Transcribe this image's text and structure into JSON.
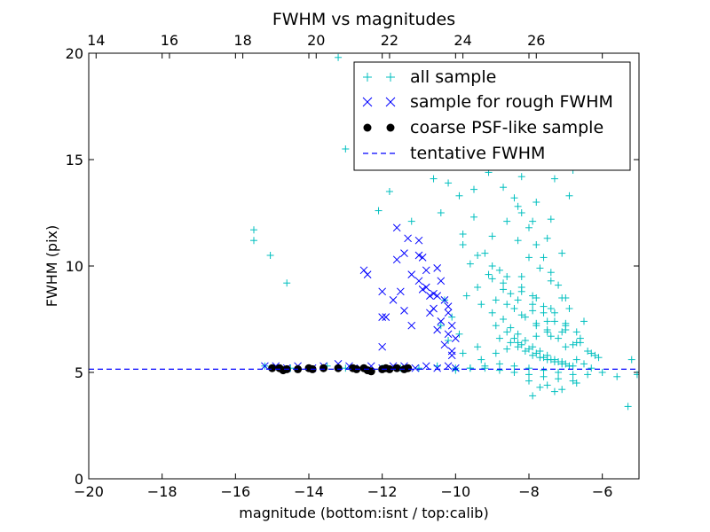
{
  "chart_data": {
    "type": "scatter",
    "title": "FWHM vs magnitudes",
    "xlabel": "magnitude (bottom:isnt / top:calib)",
    "ylabel": "FWHM (pix)",
    "xlim": [
      -20,
      -5
    ],
    "ylim": [
      0,
      20
    ],
    "x_ticks": [
      -20,
      -18,
      -16,
      -14,
      -12,
      -10,
      -8,
      -6
    ],
    "x_tick_labels": [
      "−20",
      "−18",
      "−16",
      "−14",
      "−12",
      "−10",
      "−8",
      "−6"
    ],
    "y_ticks": [
      0,
      5,
      10,
      15,
      20
    ],
    "y_tick_labels": [
      "0",
      "5",
      "10",
      "15",
      "20"
    ],
    "top_axis": {
      "ticks": [
        14,
        16,
        18,
        20,
        22,
        24,
        26
      ],
      "tick_labels": [
        "14",
        "16",
        "18",
        "20",
        "22",
        "24",
        "26"
      ],
      "offset": 33.8
    },
    "grid": false,
    "legend_position": "top-right",
    "series": [
      {
        "name": "all sample",
        "marker": "+",
        "color": "#00bfbf",
        "x": [
          -15.5,
          -15.5,
          -15.05,
          -14.6,
          -15.2,
          -14.8,
          -14.5,
          -14.0,
          -13.5,
          -13.0,
          -12.5,
          -12.0,
          -11.5,
          -11.0,
          -10.5,
          -10.0,
          -9.6,
          -9.2,
          -12.1,
          -11.8,
          -11.2,
          -10.6,
          -10.2,
          -13.2,
          -13.0,
          -10.9,
          -10.4,
          -9.9,
          -9.7,
          -9.3,
          -10.0,
          -9.6,
          -9.2,
          -8.8,
          -8.4,
          -8.0,
          -7.6,
          -7.2,
          -6.8,
          -6.4,
          -6.0,
          -5.6,
          -5.2,
          -5.05,
          -5.3,
          -9.8,
          -9.5,
          -9.2,
          -9.0,
          -8.8,
          -8.6,
          -8.5,
          -8.3,
          -8.2,
          -8.0,
          -7.9,
          -7.7,
          -7.6,
          -7.4,
          -7.3,
          -7.1,
          -7.0,
          -6.9,
          -6.7,
          -6.5,
          -9.6,
          -9.4,
          -9.1,
          -8.9,
          -8.7,
          -8.4,
          -8.2,
          -8.1,
          -7.9,
          -7.8,
          -7.6,
          -7.5,
          -7.3,
          -7.2,
          -7.0,
          -6.8,
          -6.6,
          -6.4,
          -6.2,
          -9.7,
          -9.3,
          -9.0,
          -8.7,
          -8.5,
          -8.3,
          -8.1,
          -7.9,
          -7.7,
          -7.5,
          -7.3,
          -7.1,
          -6.9,
          -6.7,
          -6.5,
          -6.3,
          -8.9,
          -8.6,
          -8.4,
          -8.2,
          -8.0,
          -7.8,
          -7.6,
          -7.4,
          -7.2,
          -7.0,
          -6.8,
          -8.8,
          -8.5,
          -8.3,
          -8.1,
          -7.9,
          -7.7,
          -7.5,
          -7.3,
          -7.1,
          -6.9,
          -8.4,
          -8.2,
          -8.0,
          -7.8,
          -7.6,
          -7.4,
          -7.2,
          -7.0,
          -9.1,
          -8.7,
          -8.3,
          -7.9,
          -7.5,
          -7.1,
          -9.5,
          -9.0,
          -8.6,
          -8.2,
          -7.8,
          -7.4,
          -8.5,
          -8.1,
          -7.7,
          -7.3,
          -6.9,
          -8.0,
          -7.6,
          -7.2,
          -6.8,
          -10.3,
          -10.1,
          -9.9,
          -9.4,
          -8.9,
          -8.6,
          -8.3,
          -7.8,
          -7.5,
          -7.0,
          -6.6,
          -6.1,
          -10.4,
          -10.2,
          -9.8,
          -9.3,
          -8.8,
          -8.4,
          -8.0,
          -7.6,
          -7.2,
          -6.8,
          -9.0,
          -8.7,
          -8.3,
          -7.9,
          -7.5,
          -7.1,
          -6.7,
          -6.3,
          -8.6,
          -8.2,
          -7.8,
          -7.4,
          -7.0,
          -9.8,
          -9.4,
          -9.0,
          -8.6,
          -8.2,
          -7.8,
          -7.4,
          -8.0,
          -7.7,
          -7.3,
          -7.9,
          -7.5,
          -7.1,
          -6.7
        ],
        "y": [
          11.7,
          11.2,
          10.5,
          9.2,
          5.3,
          5.2,
          5.2,
          5.2,
          5.3,
          5.2,
          5.2,
          5.2,
          5.2,
          5.2,
          5.3,
          5.2,
          5.2,
          5.3,
          12.6,
          13.5,
          12.1,
          14.1,
          13.9,
          19.8,
          15.5,
          15.0,
          12.5,
          13.3,
          15.7,
          16.6,
          5.1,
          5.2,
          5.2,
          5.1,
          5.0,
          4.9,
          4.8,
          4.7,
          4.6,
          4.9,
          5.0,
          4.8,
          5.6,
          4.9,
          3.4,
          11.5,
          12.3,
          10.6,
          11.4,
          9.8,
          12.1,
          8.7,
          11.2,
          9.5,
          10.4,
          8.6,
          9.9,
          8.1,
          9.3,
          7.8,
          8.5,
          7.2,
          8.0,
          6.9,
          7.4,
          10.1,
          9.0,
          9.6,
          8.4,
          9.2,
          8.0,
          8.8,
          7.6,
          8.2,
          7.3,
          7.8,
          6.9,
          7.4,
          6.6,
          7.0,
          6.3,
          6.6,
          6.0,
          5.8,
          8.6,
          8.2,
          7.8,
          7.5,
          7.1,
          6.8,
          6.5,
          6.2,
          6.0,
          5.8,
          5.6,
          5.5,
          5.3,
          5.6,
          5.4,
          5.2,
          7.2,
          6.9,
          6.6,
          6.3,
          6.1,
          5.9,
          5.7,
          5.6,
          5.5,
          5.4,
          5.3,
          6.6,
          6.4,
          6.2,
          6.0,
          5.8,
          5.7,
          5.6,
          5.5,
          5.4,
          5.3,
          13.2,
          12.5,
          11.8,
          11.0,
          10.4,
          9.7,
          9.1,
          8.5,
          14.4,
          13.7,
          12.8,
          12.1,
          11.3,
          10.6,
          13.6,
          14.7,
          15.0,
          14.2,
          13.0,
          12.2,
          16.5,
          15.8,
          14.9,
          14.1,
          13.3,
          17.2,
          16.0,
          15.4,
          14.5,
          8.4,
          7.6,
          6.8,
          6.2,
          5.9,
          6.1,
          6.4,
          6.7,
          7.0,
          7.3,
          6.4,
          5.7,
          7.2,
          6.5,
          5.9,
          5.6,
          5.4,
          5.3,
          5.2,
          5.1,
          5.0,
          4.9,
          9.4,
          8.9,
          8.4,
          7.9,
          7.4,
          6.9,
          6.4,
          5.9,
          8.2,
          7.7,
          7.2,
          6.7,
          6.2,
          11.0,
          10.5,
          10.0,
          9.5,
          9.0,
          8.5,
          8.0,
          4.6,
          4.3,
          4.1,
          3.9,
          4.4,
          4.2,
          4.5
        ]
      },
      {
        "name": "sample for rough FWHM",
        "marker": "x",
        "color": "#0000ff",
        "x": [
          -15.2,
          -14.9,
          -14.6,
          -14.3,
          -13.9,
          -13.6,
          -13.2,
          -12.9,
          -12.6,
          -12.3,
          -12.0,
          -11.7,
          -11.4,
          -11.1,
          -10.8,
          -10.5,
          -10.2,
          -10.0,
          -12.5,
          -12.4,
          -12.0,
          -11.9,
          -11.6,
          -11.4,
          -11.2,
          -11.0,
          -10.9,
          -10.8,
          -10.7,
          -10.6,
          -10.5,
          -10.4,
          -10.3,
          -10.2,
          -10.1,
          -10.0,
          -11.6,
          -11.3,
          -11.0,
          -10.8,
          -10.6,
          -10.4,
          -10.2,
          -10.1,
          -12.0,
          -11.7,
          -11.4,
          -11.2,
          -10.9,
          -10.7,
          -10.5,
          -10.3,
          -10.1,
          -12.0,
          -11.5,
          -11.0,
          -10.5,
          -10.2
        ],
        "y": [
          5.3,
          5.3,
          5.2,
          5.3,
          5.2,
          5.3,
          5.4,
          5.3,
          5.2,
          5.3,
          5.2,
          5.3,
          5.3,
          5.2,
          5.3,
          5.2,
          5.3,
          5.2,
          9.8,
          9.6,
          8.8,
          7.6,
          10.3,
          10.6,
          9.6,
          11.2,
          10.4,
          9.0,
          8.6,
          8.0,
          9.9,
          9.3,
          8.4,
          7.8,
          7.2,
          6.6,
          11.8,
          11.3,
          10.5,
          9.8,
          8.7,
          7.4,
          6.8,
          6.0,
          6.2,
          8.4,
          7.9,
          7.2,
          8.9,
          7.8,
          7.0,
          6.3,
          5.8,
          7.6,
          8.8,
          9.3,
          8.6,
          8.1
        ]
      },
      {
        "name": "coarse PSF-like sample",
        "marker": "o",
        "color": "#000000",
        "x": [
          -15.0,
          -14.8,
          -14.7,
          -14.6,
          -14.3,
          -14.0,
          -13.9,
          -13.6,
          -13.2,
          -12.8,
          -12.7,
          -12.5,
          -12.4,
          -12.3,
          -12.0,
          -11.9,
          -11.8,
          -11.6,
          -11.4,
          -11.3
        ],
        "y": [
          5.2,
          5.2,
          5.1,
          5.15,
          5.15,
          5.2,
          5.15,
          5.2,
          5.2,
          5.2,
          5.15,
          5.2,
          5.1,
          5.05,
          5.15,
          5.2,
          5.15,
          5.2,
          5.15,
          5.2
        ]
      },
      {
        "name": "tentative FWHM",
        "marker": "dashed-line",
        "color": "#0000ff",
        "y_value": 5.15
      }
    ]
  }
}
